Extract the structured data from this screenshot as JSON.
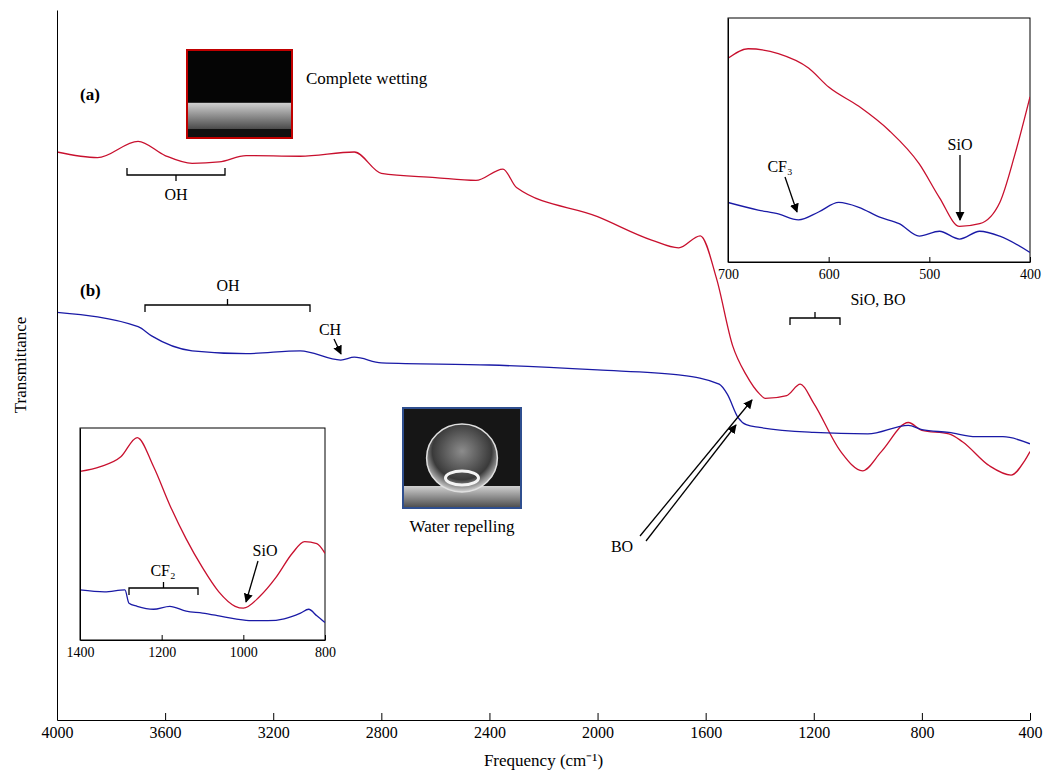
{
  "chart_data": [
    {
      "type": "line",
      "x_label": "Frequency (cm⁻¹)",
      "y_label": "Transmittance",
      "xlim": [
        4000,
        400
      ],
      "xticks": [
        4000,
        3600,
        3200,
        2800,
        2400,
        2000,
        1600,
        1200,
        800,
        400
      ],
      "ylim": [
        0,
        100
      ],
      "yticks": [],
      "tick_labels": "x",
      "series": [
        {
          "name": "(a)",
          "color": "#c8102e",
          "x": [
            4000,
            3850,
            3700,
            3600,
            3500,
            3400,
            3300,
            3100,
            2900,
            2800,
            2600,
            2450,
            2350,
            2300,
            2000,
            1800,
            1700,
            1620,
            1560,
            1500,
            1450,
            1400,
            1380,
            1300,
            1250,
            1200,
            1100,
            1020,
            950,
            850,
            800,
            700,
            650,
            550,
            470,
            420,
            400
          ],
          "values": [
            80.0,
            79.2,
            81.5,
            79.5,
            78.4,
            78.6,
            79.5,
            79.4,
            80.0,
            77.0,
            76.4,
            76.0,
            77.6,
            75.0,
            70.9,
            67.6,
            66.5,
            68.2,
            62.2,
            52.7,
            48.6,
            45.9,
            45.3,
            45.7,
            47.3,
            44.6,
            37.8,
            35.1,
            37.8,
            41.9,
            40.8,
            40.3,
            39.2,
            35.8,
            34.5,
            36.5,
            37.8
          ]
        },
        {
          "name": "(b)",
          "color": "#1a1aa6",
          "x": [
            4000,
            3700,
            3650,
            3500,
            3300,
            3100,
            2950,
            2900,
            2800,
            2400,
            2000,
            1700,
            1550,
            1520,
            1480,
            1450,
            1400,
            1200,
            1000,
            850,
            800,
            700,
            600,
            500,
            400
          ],
          "values": [
            57.4,
            55.4,
            54.1,
            52.0,
            51.6,
            52.0,
            50.7,
            51.1,
            50.3,
            50.0,
            49.3,
            48.6,
            47.3,
            45.9,
            42.6,
            41.6,
            41.2,
            40.5,
            40.3,
            41.5,
            40.9,
            40.5,
            39.9,
            39.9,
            38.9
          ]
        }
      ],
      "annotations": [
        "OH",
        "OH",
        "CH",
        "BO",
        "SiO, BO"
      ],
      "image_captions": [
        "Complete wetting",
        "Water repelling"
      ]
    },
    {
      "type": "line",
      "xlim": [
        700,
        400
      ],
      "xticks": [
        700,
        600,
        500,
        400
      ],
      "ylim": [
        0,
        100
      ],
      "yticks": [],
      "tick_labels": "x",
      "series": [
        {
          "color": "#c8102e",
          "x": [
            700,
            680,
            650,
            620,
            600,
            570,
            540,
            510,
            490,
            470,
            450,
            430,
            415,
            400
          ],
          "values": [
            83.5,
            87.4,
            85.4,
            79.5,
            71.7,
            63.8,
            53.9,
            40.2,
            26.4,
            14.6,
            15.7,
            24.4,
            44.1,
            67.7
          ]
        },
        {
          "color": "#1a1aa6",
          "x": [
            700,
            670,
            650,
            630,
            610,
            590,
            570,
            550,
            530,
            510,
            490,
            470,
            450,
            430,
            400
          ],
          "values": [
            24.4,
            21.3,
            19.7,
            17.3,
            20.5,
            24.4,
            22.4,
            18.5,
            15.7,
            10.6,
            12.6,
            9.4,
            12.6,
            10.6,
            3.9
          ]
        }
      ],
      "annotations": [
        "CF₃",
        "SiO"
      ]
    },
    {
      "type": "line",
      "xlim": [
        1400,
        800
      ],
      "xticks": [
        1400,
        1200,
        1000,
        800
      ],
      "ylim": [
        0,
        100
      ],
      "yticks": [],
      "tick_labels": "x",
      "series": [
        {
          "color": "#c8102e",
          "x": [
            1400,
            1350,
            1300,
            1260,
            1220,
            1180,
            1140,
            1100,
            1060,
            1020,
            1000,
            960,
            920,
            880,
            850,
            820,
            800
          ],
          "values": [
            79.5,
            81.8,
            86.4,
            95.5,
            81.8,
            63.6,
            47.7,
            34.1,
            22.7,
            15.9,
            15.0,
            20.5,
            29.5,
            40.9,
            46.4,
            45.5,
            40.9
          ]
        },
        {
          "color": "#1a1aa6",
          "x": [
            1400,
            1340,
            1290,
            1280,
            1260,
            1220,
            1180,
            1140,
            1100,
            1060,
            1020,
            980,
            940,
            900,
            860,
            840,
            820,
            800
          ],
          "values": [
            23.6,
            22.7,
            23.6,
            17.3,
            15.9,
            14.5,
            15.9,
            13.6,
            12.7,
            11.4,
            10.0,
            9.1,
            9.1,
            10.0,
            12.7,
            14.5,
            11.4,
            8.2
          ]
        }
      ],
      "annotations": [
        "CF₂",
        "SiO"
      ]
    }
  ]
}
